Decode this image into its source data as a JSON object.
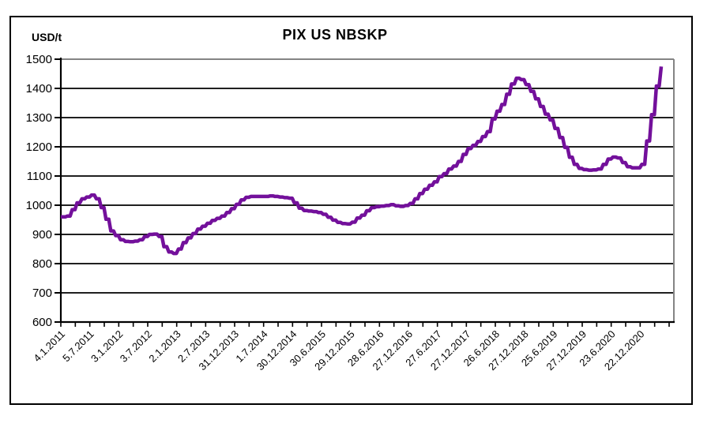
{
  "chart_data": {
    "type": "line",
    "title": "PIX US NBSKP",
    "ylabel": "USD/t",
    "xlabel": "",
    "ylim": [
      600,
      1500
    ],
    "yticks": [
      600,
      700,
      800,
      900,
      1000,
      1100,
      1200,
      1300,
      1400,
      1500
    ],
    "xtick_labels": [
      "4.1.2011",
      "5.7.2011",
      "3.1.2012",
      "3.7.2012",
      "2.1.2013",
      "2.7.2013",
      "31.12.2013",
      "1.7.2014",
      "30.12.2014",
      "30.6.2015",
      "29.12.2015",
      "28.6.2016",
      "27.12.2016",
      "27.6.2017",
      "27.12.2017",
      "26.6.2018",
      "27.12.2018",
      "25.6.2019",
      "27.12.2019",
      "23.6.2020",
      "22.12.2020"
    ],
    "grid": "horizontal",
    "legend": "none",
    "line_color": "#73109B",
    "series": [
      {
        "name": "PIX US NBSKP",
        "points": [
          [
            "2011-01-04",
            960
          ],
          [
            "2011-02",
            963
          ],
          [
            "2011-03",
            985
          ],
          [
            "2011-04",
            1008
          ],
          [
            "2011-05",
            1022
          ],
          [
            "2011-06",
            1028
          ],
          [
            "2011-07",
            1035
          ],
          [
            "2011-08",
            1022
          ],
          [
            "2011-09",
            992
          ],
          [
            "2011-10",
            952
          ],
          [
            "2011-11",
            912
          ],
          [
            "2011-12",
            896
          ],
          [
            "2012-01",
            882
          ],
          [
            "2012-02",
            876
          ],
          [
            "2012-03",
            875
          ],
          [
            "2012-04",
            877
          ],
          [
            "2012-05",
            882
          ],
          [
            "2012-06",
            893
          ],
          [
            "2012-07",
            900
          ],
          [
            "2012-08",
            901
          ],
          [
            "2012-09",
            893
          ],
          [
            "2012-10",
            858
          ],
          [
            "2012-11",
            840
          ],
          [
            "2012-12",
            835
          ],
          [
            "2013-01",
            850
          ],
          [
            "2013-02",
            872
          ],
          [
            "2013-03",
            888
          ],
          [
            "2013-04",
            903
          ],
          [
            "2013-05",
            918
          ],
          [
            "2013-06",
            928
          ],
          [
            "2013-07",
            938
          ],
          [
            "2013-08",
            948
          ],
          [
            "2013-09",
            955
          ],
          [
            "2013-10",
            963
          ],
          [
            "2013-11",
            975
          ],
          [
            "2013-12",
            988
          ],
          [
            "2014-01",
            1003
          ],
          [
            "2014-02",
            1018
          ],
          [
            "2014-03",
            1027
          ],
          [
            "2014-04",
            1030
          ],
          [
            "2014-05",
            1030
          ],
          [
            "2014-06",
            1030
          ],
          [
            "2014-07",
            1030
          ],
          [
            "2014-08",
            1032
          ],
          [
            "2014-09",
            1030
          ],
          [
            "2014-10",
            1028
          ],
          [
            "2014-11",
            1026
          ],
          [
            "2014-12",
            1024
          ],
          [
            "2015-01",
            1008
          ],
          [
            "2015-02",
            990
          ],
          [
            "2015-03",
            982
          ],
          [
            "2015-04",
            980
          ],
          [
            "2015-05",
            978
          ],
          [
            "2015-06",
            975
          ],
          [
            "2015-07",
            969
          ],
          [
            "2015-08",
            959
          ],
          [
            "2015-09",
            949
          ],
          [
            "2015-10",
            941
          ],
          [
            "2015-11",
            937
          ],
          [
            "2015-12",
            936
          ],
          [
            "2016-01",
            942
          ],
          [
            "2016-02",
            956
          ],
          [
            "2016-03",
            966
          ],
          [
            "2016-04",
            981
          ],
          [
            "2016-05",
            992
          ],
          [
            "2016-06",
            995
          ],
          [
            "2016-07",
            997
          ],
          [
            "2016-08",
            999
          ],
          [
            "2016-09",
            1002
          ],
          [
            "2016-10",
            998
          ],
          [
            "2016-11",
            996
          ],
          [
            "2016-12",
            999
          ],
          [
            "2017-01",
            1006
          ],
          [
            "2017-02",
            1022
          ],
          [
            "2017-03",
            1040
          ],
          [
            "2017-04",
            1055
          ],
          [
            "2017-05",
            1068
          ],
          [
            "2017-06",
            1080
          ],
          [
            "2017-07",
            1098
          ],
          [
            "2017-08",
            1108
          ],
          [
            "2017-09",
            1124
          ],
          [
            "2017-10",
            1134
          ],
          [
            "2017-11",
            1150
          ],
          [
            "2017-12",
            1174
          ],
          [
            "2018-01",
            1194
          ],
          [
            "2018-02",
            1205
          ],
          [
            "2018-03",
            1218
          ],
          [
            "2018-04",
            1235
          ],
          [
            "2018-05",
            1252
          ],
          [
            "2018-06",
            1295
          ],
          [
            "2018-07",
            1322
          ],
          [
            "2018-08",
            1345
          ],
          [
            "2018-09",
            1380
          ],
          [
            "2018-10",
            1415
          ],
          [
            "2018-11",
            1435
          ],
          [
            "2018-12",
            1430
          ],
          [
            "2019-01",
            1413
          ],
          [
            "2019-02",
            1390
          ],
          [
            "2019-03",
            1364
          ],
          [
            "2019-04",
            1338
          ],
          [
            "2019-05",
            1312
          ],
          [
            "2019-06",
            1292
          ],
          [
            "2019-07",
            1263
          ],
          [
            "2019-08",
            1232
          ],
          [
            "2019-09",
            1198
          ],
          [
            "2019-10",
            1164
          ],
          [
            "2019-11",
            1140
          ],
          [
            "2019-12",
            1126
          ],
          [
            "2020-01",
            1122
          ],
          [
            "2020-02",
            1120
          ],
          [
            "2020-03",
            1121
          ],
          [
            "2020-04",
            1124
          ],
          [
            "2020-05",
            1140
          ],
          [
            "2020-06",
            1158
          ],
          [
            "2020-07",
            1165
          ],
          [
            "2020-08",
            1162
          ],
          [
            "2020-09",
            1146
          ],
          [
            "2020-10",
            1132
          ],
          [
            "2020-11",
            1128
          ],
          [
            "2020-12",
            1128
          ],
          [
            "2021-01",
            1140
          ],
          [
            "2021-02",
            1220
          ],
          [
            "2021-03",
            1310
          ],
          [
            "2021-04",
            1408
          ],
          [
            "2021-05",
            1475
          ]
        ]
      }
    ]
  },
  "colors": {
    "line": "#73109B",
    "gridline": "#000000",
    "plot_border": "#848484",
    "axis": "#000000",
    "outer_border": "#000000",
    "background": "#ffffff"
  }
}
